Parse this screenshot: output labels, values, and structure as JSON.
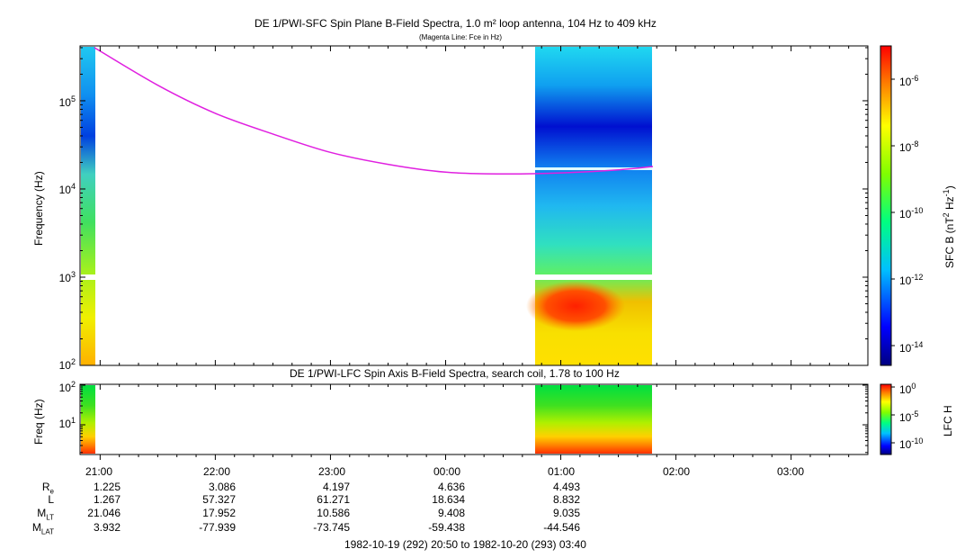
{
  "chart_data": [
    {
      "type": "heatmap",
      "title": "DE 1/PWI-SFC  Spin Plane B-Field Spectra, 1.0 m² loop antenna, 104 Hz to 409 kHz",
      "subtitle": "(Magenta Line: Fce in Hz)",
      "ylabel": "Frequency (Hz)",
      "yscale": "log",
      "ylim": [
        100,
        409000
      ],
      "ytick_labels": [
        "10",
        "10",
        "10",
        "10"
      ],
      "ytick_exponents": [
        "2",
        "3",
        "4",
        "5"
      ],
      "colorbar_label": "SFC B (nT",
      "colorbar_label_tail": " Hz",
      "colorbar_label_sup1": "2",
      "colorbar_label_sup2": "-1",
      "colorbar_label_close": ")",
      "colorbar_ticks": [
        "10",
        "10",
        "10",
        "10",
        "10"
      ],
      "colorbar_exponents": [
        "-6",
        "-8",
        "-10",
        "-12",
        "-14"
      ],
      "data_intervals": [
        {
          "start": "20:50",
          "end": "20:57"
        },
        {
          "start": "00:45",
          "end": "01:48"
        }
      ],
      "series": [
        {
          "name": "Fce in Hz",
          "color": "#e020e0",
          "x": [
            "20:57",
            "21:30",
            "22:00",
            "22:30",
            "23:00",
            "23:30",
            "00:00",
            "00:30",
            "01:00",
            "01:30",
            "01:48"
          ],
          "y": [
            400000,
            150000,
            72000,
            42000,
            26000,
            19000,
            15500,
            14800,
            15200,
            16500,
            18000
          ]
        }
      ]
    },
    {
      "type": "heatmap",
      "title": "DE 1/PWI-LFC  Spin Axis B-Field Spectra, search coil, 1.78 to 100 Hz",
      "ylabel": "Freq (Hz)",
      "yscale": "log",
      "ylim": [
        1.78,
        100
      ],
      "ytick_labels": [
        "10",
        "10"
      ],
      "ytick_exponents": [
        "2",
        "1"
      ],
      "colorbar_label": "LFC H",
      "colorbar_ticks": [
        "10",
        "10",
        "10"
      ],
      "colorbar_exponents": [
        "0",
        "-5",
        "-10"
      ],
      "data_intervals": [
        {
          "start": "20:50",
          "end": "20:57"
        },
        {
          "start": "00:45",
          "end": "01:48"
        }
      ]
    }
  ],
  "time_axis": {
    "ticks": [
      "21:00",
      "22:00",
      "23:00",
      "00:00",
      "01:00",
      "02:00",
      "03:00"
    ],
    "range_label": "1982-10-19 (292) 20:50 to 1982-10-20 (293) 03:40"
  },
  "ephemeris": {
    "labels": {
      "re_main": "R",
      "re_sub": "e",
      "l": "L",
      "mlt_main": "M",
      "mlt_sub": "LT",
      "mlat_main": "M",
      "mlat_sub": "LAT"
    },
    "rows": {
      "re": [
        "1.225",
        "3.086",
        "4.197",
        "4.636",
        "4.493"
      ],
      "l": [
        "1.267",
        "57.327",
        "61.271",
        "18.634",
        "8.832"
      ],
      "mlt": [
        "21.046",
        "17.952",
        "10.586",
        "9.408",
        "9.035"
      ],
      "mlat": [
        "3.932",
        "-77.939",
        "-73.745",
        "-59.438",
        "-44.546"
      ]
    }
  }
}
